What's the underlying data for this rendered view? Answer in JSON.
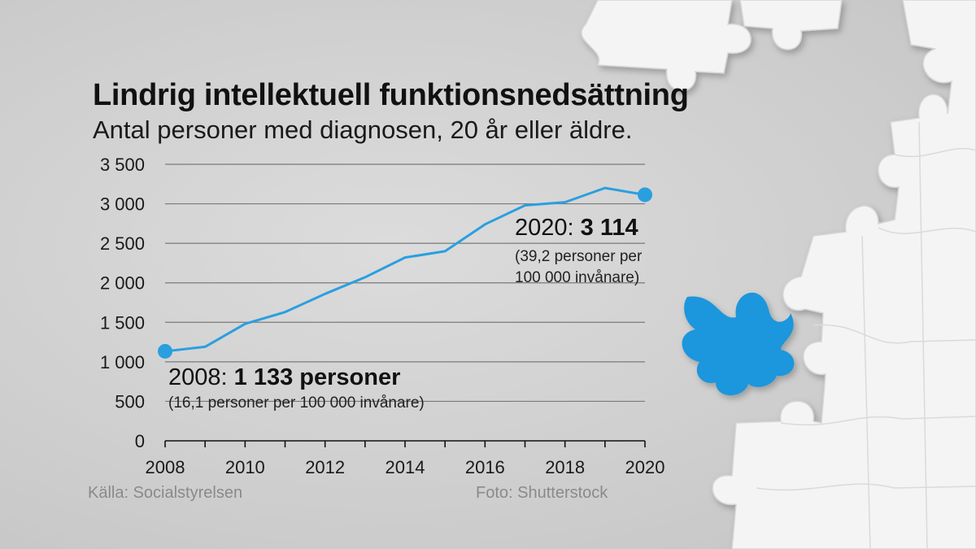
{
  "header": {
    "title": "Lindrig intellektuell funktionsnedsättning",
    "subtitle": "Antal personer med diagnosen, 20 år eller äldre."
  },
  "annotations": {
    "start": {
      "year_label": "2008:",
      "value_label": "1 133 personer",
      "note": "(16,1 personer per 100 000 invånare)"
    },
    "end": {
      "year_label": "2020:",
      "value_label": "3 114",
      "note_line1": "(39,2 personer per",
      "note_line2": "100 000 invånare)"
    }
  },
  "footer": {
    "source": "Källa: Socialstyrelsen",
    "photo": "Foto: Shutterstock"
  },
  "colors": {
    "line": "#2a9fe0",
    "puzzle_blue": "#1e96dc",
    "puzzle_white": "#f4f4f4"
  },
  "chart_data": {
    "type": "line",
    "x": [
      2008,
      2009,
      2010,
      2011,
      2012,
      2013,
      2014,
      2015,
      2016,
      2017,
      2018,
      2019,
      2020
    ],
    "values": [
      1133,
      1190,
      1480,
      1630,
      1860,
      2070,
      2320,
      2400,
      2740,
      2980,
      3020,
      3200,
      3114
    ],
    "ylim": [
      0,
      3500
    ],
    "y_ticks": [
      0,
      500,
      1000,
      1500,
      2000,
      2500,
      3000,
      3500
    ],
    "y_tick_labels": [
      "0",
      "500",
      "1 000",
      "1 500",
      "2 000",
      "2 500",
      "3 000",
      "3 500"
    ],
    "x_ticks": [
      2008,
      2010,
      2012,
      2014,
      2016,
      2018,
      2020
    ],
    "x_tick_labels": [
      "2008",
      "2010",
      "2012",
      "2014",
      "2016",
      "2018",
      "2020"
    ],
    "highlighted_points": [
      2008,
      2020
    ],
    "grid": "horizontal",
    "title": "Lindrig intellektuell funktionsnedsättning",
    "xlabel": "",
    "ylabel": ""
  }
}
